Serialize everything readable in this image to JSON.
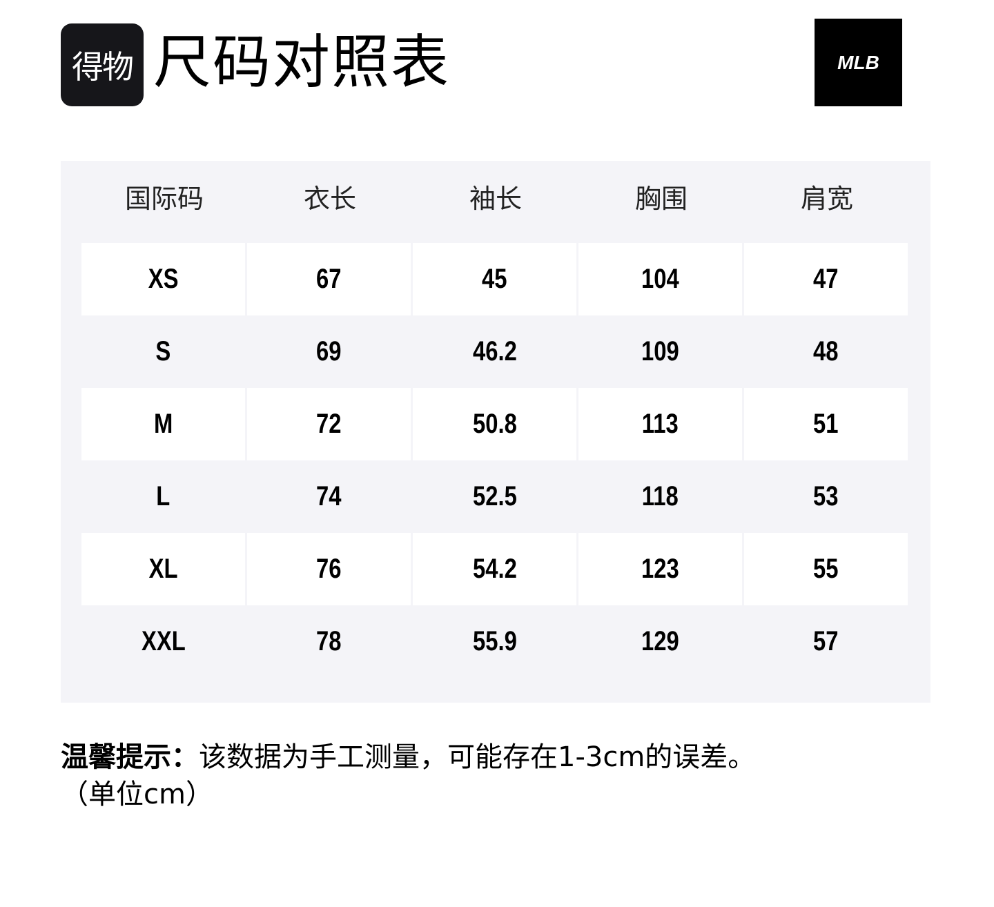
{
  "header": {
    "logo_text": "得物",
    "title": "尺码对照表",
    "brand_logo": "MLB"
  },
  "table": {
    "columns": [
      "国际码",
      "衣长",
      "袖长",
      "胸围",
      "肩宽"
    ],
    "rows": [
      [
        "XS",
        "67",
        "45",
        "104",
        "47"
      ],
      [
        "S",
        "69",
        "46.2",
        "109",
        "48"
      ],
      [
        "M",
        "72",
        "50.8",
        "113",
        "51"
      ],
      [
        "L",
        "74",
        "52.5",
        "118",
        "53"
      ],
      [
        "XL",
        "76",
        "54.2",
        "123",
        "55"
      ],
      [
        "XXL",
        "78",
        "55.9",
        "129",
        "57"
      ]
    ]
  },
  "note": {
    "label": "温馨提示：",
    "text": "该数据为手工测量，可能存在1-3cm的误差。",
    "unit": "（单位cm）"
  }
}
